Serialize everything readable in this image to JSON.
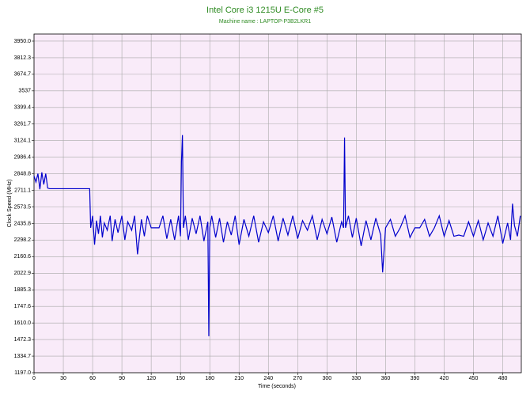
{
  "chart_data": {
    "type": "line",
    "title": "Intel Core i3 1215U E-Core #5",
    "subtitle": "Machine name : LAPTOP-P3B2LKR1",
    "x_label": "Time (seconds)",
    "y_label": "Clock Speed (MHz)",
    "grid": true,
    "background": "#f9ebf9",
    "xlim": [
      0,
      499
    ],
    "ylim": [
      1197,
      4009
    ],
    "xticks": [
      0,
      30,
      60,
      90,
      120,
      150,
      180,
      210,
      240,
      270,
      300,
      330,
      360,
      390,
      420,
      450,
      480
    ],
    "yticks": [
      {
        "value": 1197,
        "label": "1197.0"
      },
      1334.7,
      1472.3,
      {
        "value": 1610,
        "label": "1610.0"
      },
      1747.6,
      1885.3,
      2022.9,
      2160.6,
      2298.2,
      2435.8,
      2573.5,
      2711.1,
      2848.8,
      2986.4,
      3124.1,
      3261.7,
      3399.4,
      3537,
      3674.7,
      3812.3,
      {
        "value": 3950,
        "label": "3950.0"
      }
    ],
    "x": [
      0,
      2,
      4,
      6,
      8,
      10,
      12,
      14,
      16,
      20,
      30,
      40,
      50,
      57,
      58,
      60,
      62,
      64,
      66,
      68,
      70,
      72,
      75,
      78,
      80,
      83,
      86,
      90,
      93,
      96,
      100,
      103,
      106,
      110,
      113,
      116,
      120,
      124,
      128,
      132,
      136,
      140,
      144,
      148,
      150,
      151,
      152,
      153,
      155,
      158,
      162,
      166,
      170,
      174,
      178,
      179,
      180,
      182,
      186,
      190,
      194,
      198,
      202,
      206,
      210,
      215,
      220,
      225,
      230,
      235,
      240,
      245,
      250,
      255,
      260,
      265,
      270,
      275,
      280,
      285,
      290,
      295,
      300,
      305,
      310,
      315,
      317,
      318,
      319,
      322,
      326,
      330,
      335,
      340,
      345,
      350,
      355,
      357,
      360,
      365,
      370,
      375,
      380,
      385,
      390,
      395,
      400,
      405,
      410,
      415,
      420,
      425,
      430,
      435,
      440,
      445,
      450,
      455,
      460,
      465,
      470,
      475,
      480,
      485,
      488,
      490,
      492,
      495,
      498
    ],
    "series": [
      {
        "name": "Clock Speed",
        "color": "#0000cc",
        "values": [
          2830,
          2780,
          2850,
          2720,
          2860,
          2760,
          2850,
          2730,
          2725,
          2725,
          2725,
          2725,
          2725,
          2725,
          2400,
          2500,
          2260,
          2460,
          2350,
          2500,
          2320,
          2440,
          2380,
          2500,
          2290,
          2470,
          2360,
          2500,
          2300,
          2450,
          2380,
          2500,
          2180,
          2470,
          2330,
          2500,
          2400,
          2400,
          2400,
          2500,
          2310,
          2470,
          2300,
          2500,
          2330,
          2950,
          3170,
          2400,
          2500,
          2300,
          2480,
          2350,
          2500,
          2290,
          2450,
          1500,
          2400,
          2500,
          2320,
          2480,
          2280,
          2450,
          2340,
          2500,
          2260,
          2470,
          2330,
          2500,
          2280,
          2450,
          2360,
          2500,
          2290,
          2480,
          2340,
          2500,
          2310,
          2460,
          2380,
          2500,
          2300,
          2470,
          2350,
          2490,
          2280,
          2450,
          2400,
          3150,
          2400,
          2500,
          2320,
          2480,
          2250,
          2460,
          2300,
          2480,
          2340,
          2030,
          2400,
          2470,
          2330,
          2400,
          2500,
          2320,
          2400,
          2400,
          2470,
          2330,
          2400,
          2500,
          2330,
          2460,
          2330,
          2340,
          2330,
          2450,
          2330,
          2460,
          2300,
          2440,
          2330,
          2500,
          2270,
          2440,
          2300,
          2600,
          2420,
          2330,
          2500
        ]
      }
    ]
  }
}
